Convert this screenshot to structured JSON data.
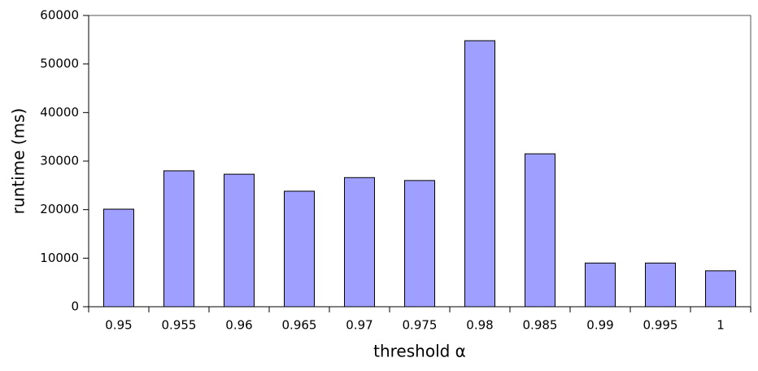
{
  "chart_data": {
    "type": "bar",
    "x_label": "threshold α",
    "y_label": "runtime (ms)",
    "categories": [
      "0.95",
      "0.955",
      "0.96",
      "0.965",
      "0.97",
      "0.975",
      "0.98",
      "0.985",
      "0.99",
      "0.995",
      "1"
    ],
    "values": [
      20100,
      28000,
      27300,
      23800,
      26600,
      26000,
      54800,
      31500,
      9000,
      9000,
      7400
    ],
    "color": "#9f9fff",
    "ylim": [
      0,
      60000
    ],
    "yticks": [
      0,
      10000,
      20000,
      30000,
      40000,
      50000,
      60000
    ],
    "grid": false
  }
}
